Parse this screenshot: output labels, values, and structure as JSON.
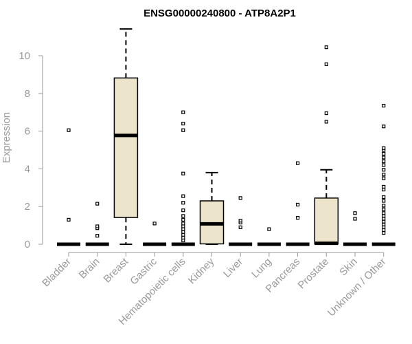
{
  "chart_data": {
    "type": "box",
    "title": "ENSG00000240800 - ATP8A2P1",
    "ylabel": "Expression",
    "ylim": [
      0,
      11.5
    ],
    "yticks": [
      0,
      2,
      4,
      6,
      8,
      10
    ],
    "grid": false,
    "colors": {
      "box_fill": "#ede5cb",
      "stroke": "#000000",
      "axis": "#999999"
    },
    "categories": [
      "Bladder",
      "Brain",
      "Breast",
      "Gastric",
      "Hematopoietic cells",
      "Kidney",
      "Liver",
      "Lung",
      "Pancreas",
      "Prostate",
      "Skin",
      "Unknown / Other"
    ],
    "boxes": [
      {
        "q1": 0,
        "median": 0,
        "q3": 0,
        "whisker_low": 0,
        "whisker_high": 0,
        "outliers": [
          1.3,
          6.05
        ]
      },
      {
        "q1": 0,
        "median": 0,
        "q3": 0,
        "whisker_low": 0,
        "whisker_high": 0,
        "outliers": [
          0.45,
          0.85,
          0.95,
          2.15
        ]
      },
      {
        "q1": 1.42,
        "median": 5.77,
        "q3": 8.82,
        "whisker_low": 0,
        "whisker_high": 11.42,
        "outliers": []
      },
      {
        "q1": 0,
        "median": 0,
        "q3": 0,
        "whisker_low": 0,
        "whisker_high": 0,
        "outliers": [
          1.1
        ]
      },
      {
        "q1": 0,
        "median": 0,
        "q3": 0,
        "whisker_low": 0,
        "whisker_high": 0,
        "outliers": [
          0.2,
          0.35,
          0.5,
          0.65,
          0.8,
          0.95,
          1.1,
          1.3,
          1.5,
          1.8,
          2.2,
          2.55,
          3.75,
          6.05,
          6.4,
          7.0
        ]
      },
      {
        "q1": 0.02,
        "median": 1.08,
        "q3": 2.3,
        "whisker_low": 0,
        "whisker_high": 3.8,
        "outliers": []
      },
      {
        "q1": 0,
        "median": 0,
        "q3": 0,
        "whisker_low": 0,
        "whisker_high": 0,
        "outliers": [
          0.9,
          1.15,
          1.25,
          2.45
        ]
      },
      {
        "q1": 0,
        "median": 0,
        "q3": 0,
        "whisker_low": 0,
        "whisker_high": 0,
        "outliers": [
          0.8
        ]
      },
      {
        "q1": 0,
        "median": 0,
        "q3": 0,
        "whisker_low": 0,
        "whisker_high": 0,
        "outliers": [
          1.4,
          2.1,
          4.3
        ]
      },
      {
        "q1": 0.02,
        "median": 0.05,
        "q3": 2.45,
        "whisker_low": 0,
        "whisker_high": 3.95,
        "outliers": [
          6.5,
          6.95,
          9.55,
          10.45
        ]
      },
      {
        "q1": 0,
        "median": 0,
        "q3": 0,
        "whisker_low": 0,
        "whisker_high": 0,
        "outliers": [
          1.35,
          1.65
        ]
      },
      {
        "q1": 0,
        "median": 0,
        "q3": 0,
        "whisker_low": 0,
        "whisker_high": 0,
        "outliers": [
          0.6,
          0.75,
          0.9,
          1.05,
          1.2,
          1.35,
          1.5,
          1.65,
          1.85,
          2.05,
          2.3,
          2.5,
          2.9,
          3.05,
          3.5,
          3.7,
          3.95,
          4.2,
          4.4,
          4.6,
          4.8,
          5.0,
          5.1,
          6.25,
          7.35
        ]
      }
    ]
  }
}
